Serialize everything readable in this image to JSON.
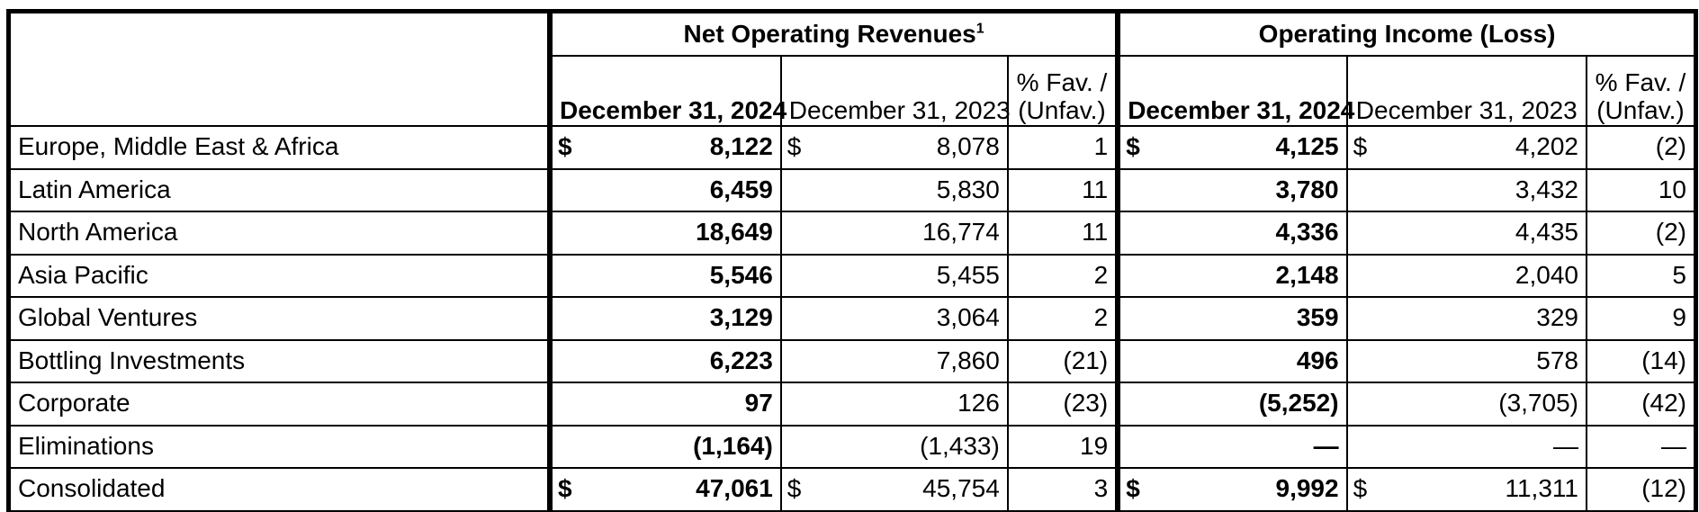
{
  "groups": {
    "revenues": "Net Operating Revenues",
    "revenues_footnote": "1",
    "income": "Operating Income (Loss)"
  },
  "columns": {
    "cur_year": "December 31, 2024",
    "prior_year": "December 31, 2023",
    "pct_line1": "% Fav. /",
    "pct_line2": "(Unfav.)"
  },
  "currency_symbol": "$",
  "rows": [
    {
      "label": "Europe, Middle East & Africa",
      "rev_2024": "8,122",
      "rev_2023": "8,078",
      "rev_pct": "1",
      "inc_2024": "4,125",
      "inc_2023": "4,202",
      "inc_pct": "(2)"
    },
    {
      "label": "Latin America",
      "rev_2024": "6,459",
      "rev_2023": "5,830",
      "rev_pct": "11",
      "inc_2024": "3,780",
      "inc_2023": "3,432",
      "inc_pct": "10"
    },
    {
      "label": "North America",
      "rev_2024": "18,649",
      "rev_2023": "16,774",
      "rev_pct": "11",
      "inc_2024": "4,336",
      "inc_2023": "4,435",
      "inc_pct": "(2)"
    },
    {
      "label": "Asia Pacific",
      "rev_2024": "5,546",
      "rev_2023": "5,455",
      "rev_pct": "2",
      "inc_2024": "2,148",
      "inc_2023": "2,040",
      "inc_pct": "5"
    },
    {
      "label": "Global Ventures",
      "rev_2024": "3,129",
      "rev_2023": "3,064",
      "rev_pct": "2",
      "inc_2024": "359",
      "inc_2023": "329",
      "inc_pct": "9"
    },
    {
      "label": "Bottling Investments",
      "rev_2024": "6,223",
      "rev_2023": "7,860",
      "rev_pct": "(21)",
      "inc_2024": "496",
      "inc_2023": "578",
      "inc_pct": "(14)"
    },
    {
      "label": "Corporate",
      "rev_2024": "97",
      "rev_2023": "126",
      "rev_pct": "(23)",
      "inc_2024": "(5,252)",
      "inc_2023": "(3,705)",
      "inc_pct": "(42)"
    },
    {
      "label": "Eliminations",
      "rev_2024": "(1,164)",
      "rev_2023": "(1,433)",
      "rev_pct": "19",
      "inc_2024": "—",
      "inc_2023": "—",
      "inc_pct": "—"
    }
  ],
  "total": {
    "label": "Consolidated",
    "rev_2024": "47,061",
    "rev_2023": "45,754",
    "rev_pct": "3",
    "inc_2024": "9,992",
    "inc_2023": "11,311",
    "inc_pct": "(12)"
  }
}
